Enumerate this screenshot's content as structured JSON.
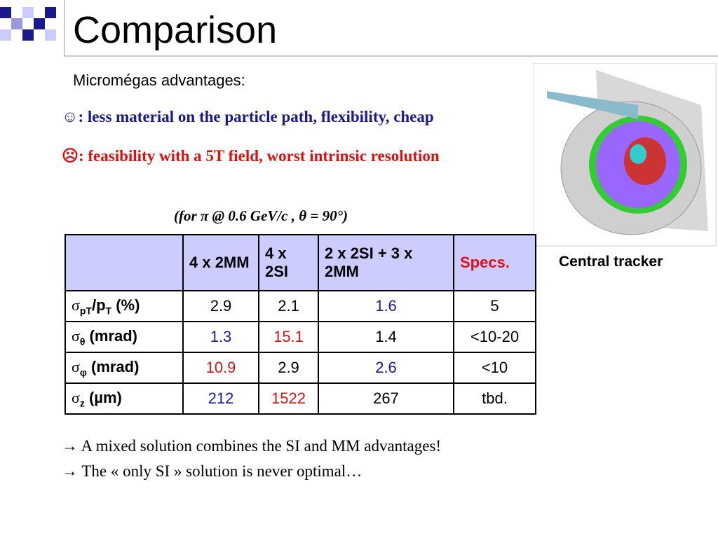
{
  "header": {
    "title": "Comparison"
  },
  "subtitle": "Micromégas advantages:",
  "bullets": [
    {
      "icon": "☺",
      "text": ": less material on the particle path, flexibility, cheap",
      "color": "#1a1a8c"
    },
    {
      "icon": "☹",
      "text": ": feasibility with a 5T field, worst intrinsic resolution",
      "color": "#e01010"
    }
  ],
  "note": "(for π @ 0.6 GeV/c , θ = 90°)",
  "image_caption": "Central tracker",
  "table": {
    "header": [
      "4 x 2MM",
      "4 x 2SI",
      "2 x 2SI + 3 x 2MM",
      "Specs."
    ],
    "header_colors": [
      "black",
      "black",
      "black",
      "#e01010"
    ],
    "rows": [
      {
        "label": [
          "σ",
          "pT",
          "/p",
          "T",
          " (%)"
        ],
        "cells": [
          "2.9",
          "2.1",
          "1.6",
          "5"
        ],
        "colors": [
          "black",
          "black",
          "#1a1aa0",
          "black"
        ]
      },
      {
        "label": [
          "σ",
          "θ",
          " (mrad)"
        ],
        "cells": [
          "1.3",
          "15.1",
          "1.4",
          "<10-20"
        ],
        "colors": [
          "#1a1aa0",
          "#e01010",
          "black",
          "black"
        ]
      },
      {
        "label": [
          "σ",
          "φ",
          " (mrad)"
        ],
        "cells": [
          "10.9",
          "2.9",
          "2.6",
          "<10"
        ],
        "colors": [
          "#e01010",
          "black",
          "#1a1aa0",
          "black"
        ]
      },
      {
        "label": [
          "σ",
          "z",
          " (µm)"
        ],
        "cells": [
          "212",
          "1522",
          "267",
          "tbd."
        ],
        "colors": [
          "#1a1aa0",
          "#e01010",
          "black",
          "black"
        ]
      }
    ]
  },
  "conclusions": [
    "→ A mixed solution combines the SI and MM advantages!",
    "→ The « only SI » solution is never optimal…"
  ]
}
